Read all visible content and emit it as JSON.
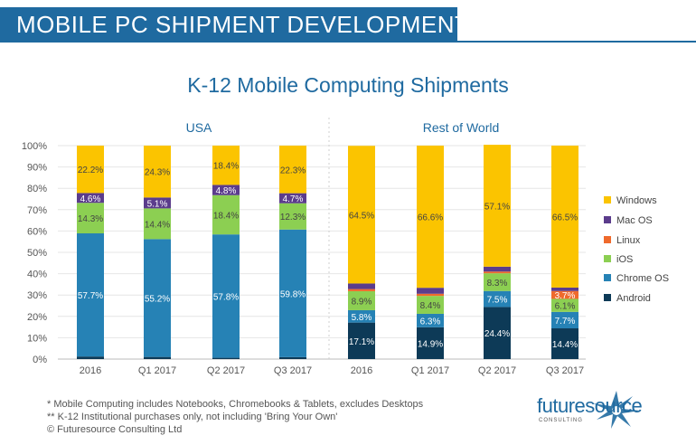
{
  "banner": {
    "title": "MOBILE PC SHIPMENT DEVELOPMENTS"
  },
  "colors": {
    "banner": "#1f6aa0",
    "Windows": "#fbc400",
    "Mac OS": "#5b3c8c",
    "Linux": "#ef6a2c",
    "iOS": "#8ccf52",
    "Chrome OS": "#2682b5",
    "Android": "#0d3a57"
  },
  "chart_data": {
    "type": "bar",
    "stacked": true,
    "title": "K-12 Mobile Computing Shipments",
    "ylim": [
      0,
      100
    ],
    "yticks": [
      "0%",
      "10%",
      "20%",
      "30%",
      "40%",
      "50%",
      "60%",
      "70%",
      "80%",
      "90%",
      "100%"
    ],
    "legend_position": "right",
    "legend": [
      "Windows",
      "Mac OS",
      "Linux",
      "iOS",
      "Chrome OS",
      "Android"
    ],
    "panels": [
      {
        "name": "USA",
        "categories": [
          "2016",
          "Q1 2017",
          "Q2 2017",
          "Q3 2017"
        ],
        "series": [
          {
            "name": "Android",
            "values": [
              1.2,
              1.0,
              0.6,
              0.9
            ],
            "labels": [
              "",
              "",
              "",
              ""
            ]
          },
          {
            "name": "Chrome OS",
            "values": [
              57.7,
              55.2,
              57.8,
              59.8
            ],
            "labels": [
              "57.7%",
              "55.2%",
              "57.8%",
              "59.8%"
            ]
          },
          {
            "name": "iOS",
            "values": [
              14.3,
              14.4,
              18.4,
              12.3
            ],
            "labels": [
              "14.3%",
              "14.4%",
              "18.4%",
              "12.3%"
            ]
          },
          {
            "name": "Linux",
            "values": [
              0,
              0,
              0,
              0
            ],
            "labels": [
              "",
              "",
              "",
              ""
            ]
          },
          {
            "name": "Mac OS",
            "values": [
              4.6,
              5.1,
              4.8,
              4.7
            ],
            "labels": [
              "4.6%",
              "5.1%",
              "4.8%",
              "4.7%"
            ]
          },
          {
            "name": "Windows",
            "values": [
              22.2,
              24.3,
              18.4,
              22.3
            ],
            "labels": [
              "22.2%",
              "24.3%",
              "18.4%",
              "22.3%"
            ]
          }
        ]
      },
      {
        "name": "Rest of World",
        "categories": [
          "2016",
          "Q1 2017",
          "Q2 2017",
          "Q3 2017"
        ],
        "series": [
          {
            "name": "Android",
            "values": [
              17.1,
              14.9,
              24.4,
              14.4
            ],
            "labels": [
              "17.1%",
              "14.9%",
              "24.4%",
              "14.4%"
            ]
          },
          {
            "name": "Chrome OS",
            "values": [
              5.8,
              6.3,
              7.5,
              7.7
            ],
            "labels": [
              "5.8%",
              "6.3%",
              "7.5%",
              "7.7%"
            ]
          },
          {
            "name": "iOS",
            "values": [
              8.9,
              8.4,
              8.3,
              6.1
            ],
            "labels": [
              "8.9%",
              "8.4%",
              "8.3%",
              "6.1%"
            ]
          },
          {
            "name": "Linux",
            "values": [
              1.0,
              1.0,
              0.8,
              3.7
            ],
            "labels": [
              "",
              "",
              "",
              "3.7%"
            ]
          },
          {
            "name": "Mac OS",
            "values": [
              2.6,
              2.8,
              2.3,
              1.6
            ],
            "labels": [
              "",
              "",
              "",
              ""
            ]
          },
          {
            "name": "Windows",
            "values": [
              64.5,
              66.6,
              57.1,
              66.5
            ],
            "labels": [
              "64.5%",
              "66.6%",
              "57.1%",
              "66.5%"
            ]
          }
        ]
      }
    ]
  },
  "footnotes": [
    "* Mobile Computing includes Notebooks, Chromebooks & Tablets, excludes Desktops",
    "** K-12 Institutional purchases only, not including 'Bring Your Own'",
    "© Futuresource Consulting Ltd"
  ],
  "logo": {
    "word": "futuresource",
    "sub": "CONSULTING"
  }
}
